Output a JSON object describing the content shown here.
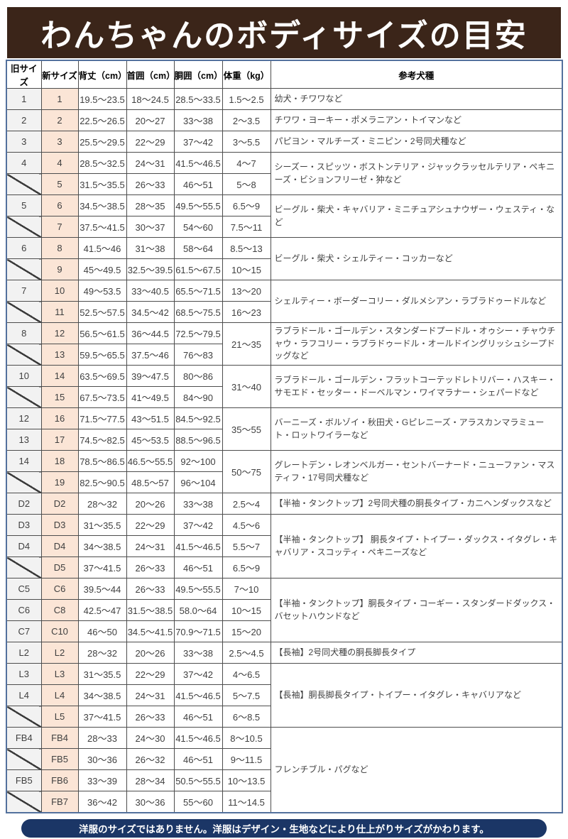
{
  "title": "わんちゃんのボディサイズの目安",
  "footer_note": "洋服のサイズではありません。洋服はデザイン・生地などにより仕上がりサイズがかわります。",
  "colors": {
    "banner_bg": "#3b2519",
    "old_col_bg": "#f2f2f2",
    "new_col_bg": "#fbe5d6",
    "table_border": "#53719d",
    "grid_line": "#4d4d4d",
    "footer_bg": "#1b3666"
  },
  "table": {
    "headers": [
      "旧サイズ",
      "新サイズ",
      "背丈（cm）",
      "首囲（cm）",
      "胴囲（cm）",
      "体重（kg）",
      "参考犬種"
    ],
    "col_keys": [
      "old-size",
      "new-size",
      "back-length",
      "neck-girth",
      "chest-girth",
      "weight",
      "reference-breeds"
    ],
    "rows": [
      {
        "old": "1",
        "new": "1",
        "back": "19.5～23.5",
        "neck": "18～24.5",
        "girth": "28.5～33.5",
        "weight": "1.5～2.5",
        "breed": "幼犬・チワワなど",
        "breed_span": 1
      },
      {
        "old": "2",
        "new": "2",
        "back": "22.5～26.5",
        "neck": "20～27",
        "girth": "33～38",
        "weight": "2～3.5",
        "breed": "チワワ・ヨーキー・ポメラニアン・トイマンなど",
        "breed_span": 1
      },
      {
        "old": "3",
        "new": "3",
        "back": "25.5～29.5",
        "neck": "22～29",
        "girth": "37～42",
        "weight": "3～5.5",
        "breed": "パピヨン・マルチーズ・ミニピン・2号同犬種など",
        "breed_span": 1
      },
      {
        "old": "4",
        "new": "4",
        "back": "28.5～32.5",
        "neck": "24～31",
        "girth": "41.5～46.5",
        "weight": "4～7",
        "breed": "シーズー・スピッツ・ボストンテリア・ジャックラッセルテリア・ペキニーズ・ビションフリーゼ・狆など",
        "breed_span": 2
      },
      {
        "old": null,
        "new": "5",
        "back": "31.5～35.5",
        "neck": "26～33",
        "girth": "46～51",
        "weight": "5～8",
        "breed": null
      },
      {
        "old": "5",
        "new": "6",
        "back": "34.5～38.5",
        "neck": "28～35",
        "girth": "49.5～55.5",
        "weight": "6.5～9",
        "breed": "ビーグル・柴犬・キャバリア・ミニチュアシュナウザー・ウェスティ・など",
        "breed_span": 2
      },
      {
        "old": null,
        "new": "7",
        "back": "37.5～41.5",
        "neck": "30～37",
        "girth": "54～60",
        "weight": "7.5～11",
        "breed": null
      },
      {
        "old": "6",
        "new": "8",
        "back": "41.5～46",
        "neck": "31～38",
        "girth": "58～64",
        "weight": "8.5～13",
        "breed": "ビーグル・柴犬・シェルティー・コッカーなど",
        "breed_span": 2
      },
      {
        "old": null,
        "new": "9",
        "back": "45～49.5",
        "neck": "32.5～39.5",
        "girth": "61.5～67.5",
        "weight": "10～15",
        "breed": null
      },
      {
        "old": "7",
        "new": "10",
        "back": "49～53.5",
        "neck": "33～40.5",
        "girth": "65.5～71.5",
        "weight": "13～20",
        "breed": "シェルティー・ボーダーコリー・ダルメシアン・ラブラドゥードルなど",
        "breed_span": 2
      },
      {
        "old": null,
        "new": "11",
        "back": "52.5～57.5",
        "neck": "34.5～42",
        "girth": "68.5～75.5",
        "weight": "16～23",
        "breed": null
      },
      {
        "old": "8",
        "new": "12",
        "back": "56.5～61.5",
        "neck": "36～44.5",
        "girth": "72.5～79.5",
        "weight": "21～35",
        "weight_span": 2,
        "breed": "ラブラドール・ゴールデン・スタンダードプードル・オゥシー・チャウチャウ・ラフコリー・ラブラドゥードル・オールドイングリッシュシープドッグなど",
        "breed_span": 2
      },
      {
        "old": null,
        "new": "13",
        "back": "59.5～65.5",
        "neck": "37.5～46",
        "girth": "76～83",
        "weight": null,
        "breed": null
      },
      {
        "old": "10",
        "new": "14",
        "back": "63.5～69.5",
        "neck": "39～47.5",
        "girth": "80～86",
        "weight": "31～40",
        "weight_span": 2,
        "breed": "ラブラドール・ゴールデン・フラットコーテッドレトリバー・ハスキー・サモエド・セッター・ドーベルマン・ワイマラナー・シェパードなど",
        "breed_span": 2
      },
      {
        "old": null,
        "new": "15",
        "back": "67.5～73.5",
        "neck": "41～49.5",
        "girth": "84～90",
        "weight": null,
        "breed": null
      },
      {
        "old": "12",
        "new": "16",
        "back": "71.5～77.5",
        "neck": "43～51.5",
        "girth": "84.5～92.5",
        "weight": "35～55",
        "weight_span": 2,
        "breed": "バーニーズ・ボルゾイ・秋田犬・Gピレニーズ・アラスカンマラミュート・ロットワイラーなど",
        "breed_span": 2
      },
      {
        "old": "13",
        "new": "17",
        "back": "74.5～82.5",
        "neck": "45～53.5",
        "girth": "88.5～96.5",
        "weight": null,
        "breed": null
      },
      {
        "old": "14",
        "new": "18",
        "back": "78.5～86.5",
        "neck": "46.5～55.5",
        "girth": "92～100",
        "weight": "50～75",
        "weight_span": 2,
        "breed": "グレートデン・レオンベルガー・セントバーナード・ニューファン・マスティフ・17号同犬種など",
        "breed_span": 2
      },
      {
        "old": null,
        "new": "19",
        "back": "82.5～90.5",
        "neck": "48.5～57",
        "girth": "96～104",
        "weight": null,
        "breed": null
      },
      {
        "old": "D2",
        "new": "D2",
        "back": "28～32",
        "neck": "20～26",
        "girth": "33～38",
        "weight": "2.5～4",
        "breed": "【半袖・タンクトップ】2号同犬種の胴長タイプ・カニヘンダックスなど",
        "breed_span": 1
      },
      {
        "old": "D3",
        "new": "D3",
        "back": "31～35.5",
        "neck": "22～29",
        "girth": "37～42",
        "weight": "4.5～6",
        "breed": "【半袖・タンクトップ】 胴長タイプ・トイプー・ダックス・イタグレ・キャバリア・スコッティ・ペキニーズなど",
        "breed_span": 3
      },
      {
        "old": "D4",
        "new": "D4",
        "back": "34～38.5",
        "neck": "24～31",
        "girth": "41.5～46.5",
        "weight": "5.5～7",
        "breed": null
      },
      {
        "old": null,
        "new": "D5",
        "back": "37～41.5",
        "neck": "26～33",
        "girth": "46～51",
        "weight": "6.5～9",
        "breed": null
      },
      {
        "old": "C5",
        "new": "C6",
        "back": "39.5～44",
        "neck": "26～33",
        "girth": "49.5～55.5",
        "weight": "7～10",
        "breed": "【半袖・タンクトップ】胴長タイプ・コーギー・スタンダードダックス・バセットハウンドなど",
        "breed_span": 3
      },
      {
        "old": "C6",
        "new": "C8",
        "back": "42.5～47",
        "neck": "31.5～38.5",
        "girth": "58.0～64",
        "weight": "10～15",
        "breed": null
      },
      {
        "old": "C7",
        "new": "C10",
        "back": "46～50",
        "neck": "34.5～41.5",
        "girth": "70.9～71.5",
        "weight": "15～20",
        "breed": null
      },
      {
        "old": "L2",
        "new": "L2",
        "back": "28～32",
        "neck": "20～26",
        "girth": "33～38",
        "weight": "2.5～4.5",
        "breed": "【長袖】2号同犬種の胴長脚長タイプ",
        "breed_span": 1
      },
      {
        "old": "L3",
        "new": "L3",
        "back": "31～35.5",
        "neck": "22～29",
        "girth": "37～42",
        "weight": "4～6.5",
        "breed": "【長袖】胴長脚長タイプ・トイプー・イタグレ・キャバリアなど",
        "breed_span": 3
      },
      {
        "old": "L4",
        "new": "L4",
        "back": "34～38.5",
        "neck": "24～31",
        "girth": "41.5～46.5",
        "weight": "5～7.5",
        "breed": null
      },
      {
        "old": null,
        "new": "L5",
        "back": "37～41.5",
        "neck": "26～33",
        "girth": "46～51",
        "weight": "6～8.5",
        "breed": null
      },
      {
        "old": "FB4",
        "new": "FB4",
        "back": "28～33",
        "neck": "24～30",
        "girth": "41.5～46.5",
        "weight": "8～10.5",
        "breed": "フレンチブル・パグなど",
        "breed_span": 4
      },
      {
        "old": null,
        "new": "FB5",
        "back": "30～36",
        "neck": "26～32",
        "girth": "46～51",
        "weight": "9～11.5",
        "breed": null
      },
      {
        "old": "FB5",
        "new": "FB6",
        "back": "33～39",
        "neck": "28～34",
        "girth": "50.5～55.5",
        "weight": "10～13.5",
        "breed": null
      },
      {
        "old": null,
        "new": "FB7",
        "back": "36～42",
        "neck": "30～36",
        "girth": "55～60",
        "weight": "11～14.5",
        "breed": null
      }
    ]
  }
}
